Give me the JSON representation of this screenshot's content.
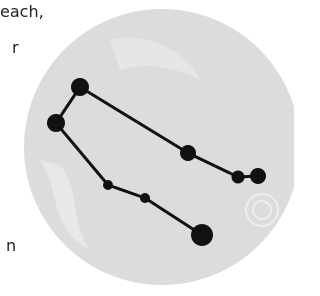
{
  "text_fragments": [
    "each,",
    "r",
    "n"
  ]
}
